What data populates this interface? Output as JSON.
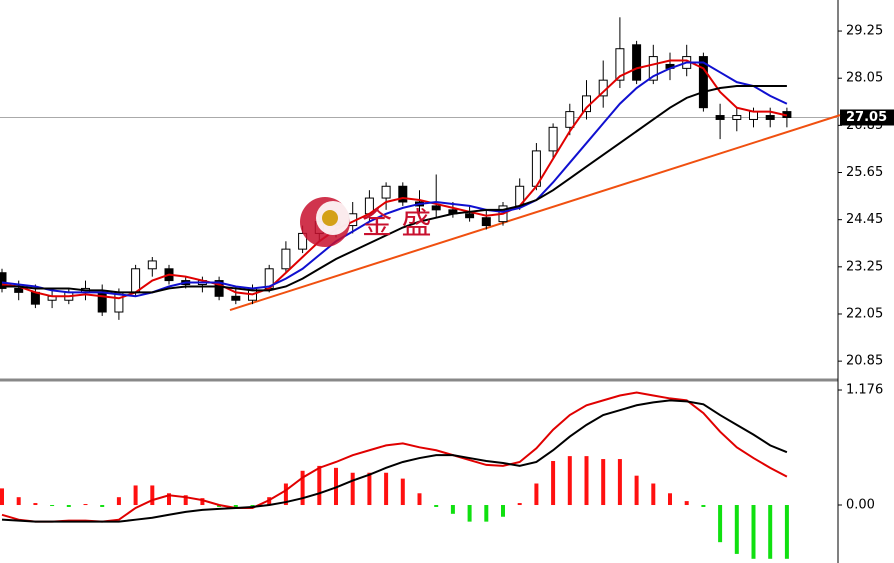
{
  "chart_data": [
    {
      "type": "candlestick",
      "open": [
        23.1,
        22.7,
        22.6,
        22.4,
        22.4,
        22.6,
        22.6,
        22.1,
        22.6,
        23.2,
        23.2,
        22.9,
        22.8,
        22.9,
        22.5,
        22.4,
        22.7,
        23.2,
        23.7,
        24.1,
        24.4,
        24.3,
        24.6,
        25.0,
        25.3,
        24.9,
        24.8,
        24.7,
        24.6,
        24.5,
        24.4,
        24.8,
        25.3,
        26.2,
        26.8,
        27.2,
        27.6,
        28.0,
        28.9,
        28.0,
        28.4,
        28.3,
        28.6,
        27.1,
        27.0,
        27.0,
        27.1,
        27.2
      ],
      "high": [
        23.2,
        22.9,
        22.8,
        22.7,
        22.7,
        22.9,
        22.8,
        22.7,
        23.3,
        23.5,
        23.3,
        23.0,
        23.0,
        23.0,
        22.7,
        22.8,
        23.3,
        23.9,
        24.3,
        24.6,
        24.7,
        24.9,
        25.2,
        25.4,
        25.4,
        25.2,
        25.6,
        24.9,
        24.8,
        24.7,
        24.9,
        25.5,
        26.4,
        26.9,
        27.4,
        28.0,
        28.5,
        29.6,
        29.0,
        28.9,
        28.7,
        28.9,
        28.7,
        27.4,
        27.3,
        27.3,
        27.3,
        27.3
      ],
      "low": [
        22.6,
        22.4,
        22.2,
        22.2,
        22.3,
        22.4,
        22.0,
        21.9,
        22.5,
        23.0,
        22.8,
        22.7,
        22.6,
        22.4,
        22.3,
        22.3,
        22.6,
        23.1,
        23.6,
        23.9,
        24.0,
        24.1,
        24.4,
        24.7,
        24.8,
        24.6,
        24.5,
        24.5,
        24.4,
        24.2,
        24.3,
        24.7,
        25.2,
        26.0,
        26.6,
        27.0,
        27.3,
        27.8,
        27.9,
        27.9,
        28.0,
        28.1,
        27.2,
        26.5,
        26.7,
        26.8,
        26.8,
        26.8
      ],
      "close": [
        22.7,
        22.6,
        22.3,
        22.5,
        22.6,
        22.7,
        22.1,
        22.6,
        23.2,
        23.4,
        22.9,
        22.8,
        22.9,
        22.5,
        22.4,
        22.7,
        23.2,
        23.7,
        24.1,
        24.4,
        24.3,
        24.6,
        25.0,
        25.3,
        24.9,
        24.8,
        24.7,
        24.6,
        24.5,
        24.3,
        24.8,
        25.3,
        26.2,
        26.8,
        27.2,
        27.6,
        28.0,
        28.8,
        28.0,
        28.6,
        28.3,
        28.6,
        27.3,
        27.0,
        27.1,
        27.2,
        27.0,
        27.05
      ],
      "series": [
        {
          "color": "#e00000",
          "values": [
            22.8,
            22.75,
            22.6,
            22.5,
            22.5,
            22.55,
            22.5,
            22.45,
            22.6,
            22.9,
            23.05,
            23.0,
            22.9,
            22.8,
            22.6,
            22.55,
            22.7,
            23.1,
            23.5,
            23.9,
            24.2,
            24.4,
            24.6,
            24.9,
            25.0,
            24.95,
            24.85,
            24.75,
            24.65,
            24.55,
            24.6,
            24.8,
            25.3,
            26.0,
            26.7,
            27.3,
            27.7,
            28.1,
            28.3,
            28.4,
            28.5,
            28.5,
            28.3,
            27.7,
            27.3,
            27.2,
            27.2,
            27.1
          ]
        },
        {
          "color": "#1010d0",
          "values": [
            22.85,
            22.8,
            22.75,
            22.65,
            22.6,
            22.6,
            22.6,
            22.55,
            22.5,
            22.6,
            22.75,
            22.85,
            22.85,
            22.85,
            22.75,
            22.7,
            22.75,
            22.95,
            23.2,
            23.55,
            23.9,
            24.15,
            24.4,
            24.6,
            24.75,
            24.85,
            24.9,
            24.85,
            24.8,
            24.7,
            24.65,
            24.75,
            24.95,
            25.4,
            25.9,
            26.4,
            26.9,
            27.4,
            27.8,
            28.1,
            28.3,
            28.45,
            28.45,
            28.2,
            27.95,
            27.85,
            27.6,
            27.4
          ]
        },
        {
          "color": "#000000",
          "values": [
            22.75,
            22.75,
            22.7,
            22.7,
            22.7,
            22.65,
            22.65,
            22.6,
            22.6,
            22.6,
            22.7,
            22.75,
            22.75,
            22.75,
            22.7,
            22.65,
            22.65,
            22.75,
            22.95,
            23.2,
            23.45,
            23.65,
            23.85,
            24.05,
            24.25,
            24.4,
            24.5,
            24.6,
            24.65,
            24.7,
            24.7,
            24.8,
            24.95,
            25.2,
            25.5,
            25.8,
            26.1,
            26.4,
            26.7,
            27.0,
            27.3,
            27.55,
            27.7,
            27.8,
            27.85,
            27.85,
            27.85,
            27.85
          ]
        }
      ],
      "trend_line": {
        "color": "#f05010",
        "values": [
          22.15,
          27.11
        ]
      },
      "last_price": 27.05,
      "watermark": "金 盛",
      "ylim": [
        20.37,
        30.04
      ],
      "yticks": [
        20.85,
        22.05,
        23.25,
        24.45,
        25.65,
        26.85,
        28.05,
        29.25
      ]
    },
    {
      "type": "macd",
      "histogram": {
        "up_color": "#ff1010",
        "down_color": "#10e010",
        "values": [
          0.17,
          0.08,
          0.02,
          -0.01,
          -0.02,
          0.01,
          -0.02,
          0.08,
          0.2,
          0.2,
          0.12,
          0.1,
          0.07,
          -0.02,
          -0.03,
          -0.01,
          0.08,
          0.22,
          0.35,
          0.4,
          0.38,
          0.33,
          0.33,
          0.33,
          0.27,
          0.12,
          -0.02,
          -0.09,
          -0.17,
          -0.17,
          -0.12,
          0.02,
          0.22,
          0.45,
          0.5,
          0.5,
          0.47,
          0.47,
          0.3,
          0.22,
          0.12,
          0.04,
          -0.02,
          -0.38,
          -0.5,
          -0.55,
          -0.55,
          -0.55
        ]
      },
      "series": [
        {
          "color": "#e00000",
          "values": [
            -0.1,
            -0.15,
            -0.17,
            -0.17,
            -0.16,
            -0.16,
            -0.17,
            -0.15,
            -0.03,
            0.05,
            0.1,
            0.08,
            0.05,
            0.0,
            -0.03,
            -0.03,
            0.05,
            0.15,
            0.28,
            0.38,
            0.44,
            0.51,
            0.56,
            0.61,
            0.63,
            0.59,
            0.56,
            0.51,
            0.46,
            0.41,
            0.4,
            0.44,
            0.58,
            0.77,
            0.92,
            1.02,
            1.07,
            1.12,
            1.15,
            1.12,
            1.09,
            1.07,
            0.94,
            0.75,
            0.59,
            0.48,
            0.38,
            0.29
          ]
        },
        {
          "color": "#000000",
          "values": [
            -0.15,
            -0.16,
            -0.17,
            -0.17,
            -0.17,
            -0.17,
            -0.17,
            -0.17,
            -0.15,
            -0.13,
            -0.1,
            -0.07,
            -0.05,
            -0.04,
            -0.03,
            -0.02,
            0.0,
            0.03,
            0.07,
            0.12,
            0.18,
            0.25,
            0.31,
            0.38,
            0.44,
            0.48,
            0.51,
            0.51,
            0.48,
            0.45,
            0.43,
            0.4,
            0.44,
            0.56,
            0.7,
            0.82,
            0.92,
            0.97,
            1.02,
            1.05,
            1.07,
            1.06,
            1.03,
            0.92,
            0.82,
            0.72,
            0.61,
            0.54
          ]
        }
      ],
      "ylim": [
        -0.593,
        1.258
      ],
      "yticks": [
        {
          "value": 1.176,
          "label": "1.176"
        },
        {
          "value": 0,
          "label": "0.00"
        }
      ]
    }
  ]
}
